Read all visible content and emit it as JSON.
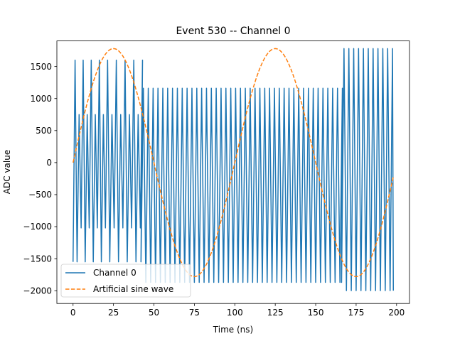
{
  "chart_data": {
    "type": "line",
    "title": "Event 530 -- Channel 0",
    "xlabel": "Time (ns)",
    "ylabel": "ADC value",
    "xlim": [
      -10,
      208
    ],
    "ylim": [
      -2200,
      1900
    ],
    "xticks": [
      0,
      25,
      50,
      75,
      100,
      125,
      150,
      175,
      200
    ],
    "yticks": [
      -2000,
      -1500,
      -1000,
      -500,
      0,
      500,
      1000,
      1500
    ],
    "grid": false,
    "legend_position": "lower-left",
    "series": [
      {
        "name": "Channel 0",
        "style": "solid",
        "color": "#1f77b4",
        "segments": [
          {
            "x_start": 0,
            "x_end": 20,
            "period": 2.5,
            "peaks": [
              1600,
              750
            ],
            "troughs": [
              -1550,
              -1020
            ]
          },
          {
            "x_start": 20,
            "x_end": 42,
            "period": 2.7,
            "peaks": [
              1600,
              750
            ],
            "troughs": [
              -1550,
              -1020
            ]
          },
          {
            "x_start": 42,
            "x_end": 166,
            "period": 3.0,
            "peaks": [
              1160
            ],
            "troughs": [
              -1870
            ]
          },
          {
            "x_start": 166,
            "x_end": 198,
            "period": 3.0,
            "peaks": [
              1780
            ],
            "troughs": [
              -2000
            ]
          }
        ]
      },
      {
        "name": "Artificial sine wave",
        "style": "dashed",
        "color": "#ff7f0e",
        "amplitude": 1780,
        "period": 100,
        "x_start": 0,
        "x_end": 198
      }
    ]
  }
}
